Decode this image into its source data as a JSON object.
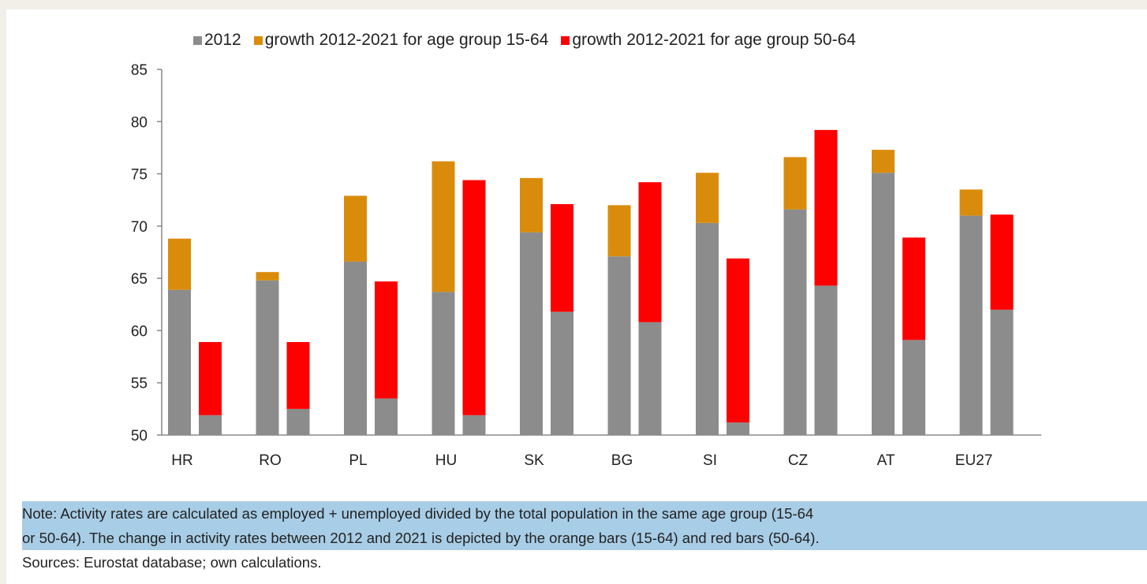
{
  "legend": {
    "items": [
      {
        "label": "2012",
        "color": "#8c8c8c"
      },
      {
        "label": "growth 2012-2021 for age group 15-64",
        "color": "#d98c0b"
      },
      {
        "label": "growth 2012-2021 for age group 50-64",
        "color": "#ff0000"
      }
    ]
  },
  "chart_data": {
    "type": "bar",
    "stacked": true,
    "categories": [
      "HR",
      "RO",
      "PL",
      "HU",
      "SK",
      "BG",
      "SI",
      "CZ",
      "AT",
      "EU27"
    ],
    "ylim": [
      50,
      85
    ],
    "yticks": [
      50,
      55,
      60,
      65,
      70,
      75,
      80,
      85
    ],
    "grid": false,
    "legend_position": "top",
    "bars_15_64": {
      "base_2012": [
        63.9,
        64.8,
        66.6,
        63.7,
        69.4,
        67.1,
        70.3,
        71.6,
        75.1,
        71.0
      ],
      "growth": [
        4.9,
        0.8,
        6.3,
        12.5,
        5.2,
        4.9,
        4.8,
        5.0,
        2.2,
        2.5
      ],
      "colors": {
        "2012": "#8c8c8c",
        "growth": "#d98c0b"
      }
    },
    "bars_50_64": {
      "base_2012": [
        51.9,
        52.5,
        53.5,
        51.9,
        61.8,
        60.8,
        51.2,
        64.3,
        59.1,
        62.0
      ],
      "growth": [
        7.0,
        6.4,
        11.2,
        22.5,
        10.3,
        13.4,
        15.7,
        14.9,
        9.8,
        9.1
      ],
      "colors": {
        "2012": "#8c8c8c",
        "growth": "#ff0000"
      }
    }
  },
  "note": {
    "line1": "Note: Activity rates are calculated as employed + unemployed divided by the total population in the same age group (15-64",
    "line2": "or 50-64). The change in activity rates between 2012 and 2021 is depicted by the orange bars (15-64) and red bars (50-64).",
    "sources": "Sources: Eurostat database; own calculations."
  }
}
